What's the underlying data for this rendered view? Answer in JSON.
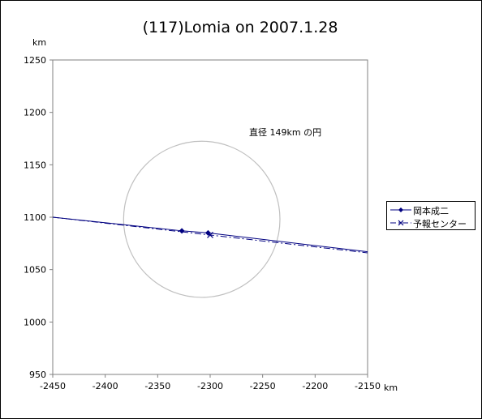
{
  "chart_data": {
    "type": "line",
    "title": "(117)Lomia on 2007.1.28",
    "xlabel": "km",
    "ylabel": "km",
    "xlim": [
      -2450,
      -2150
    ],
    "ylim": [
      950,
      1250
    ],
    "xticks": [
      "-2450",
      "-2400",
      "-2350",
      "-2300",
      "-2250",
      "-2200",
      "-2150"
    ],
    "yticks": [
      "950",
      "1000",
      "1050",
      "1100",
      "1150",
      "1200",
      "1250"
    ],
    "grid": false,
    "legend_position": "right",
    "annotation": "直径 149km の円",
    "circle": {
      "center_x": -2308,
      "center_y": 1098,
      "diameter_km": 149,
      "color": "#c0c0c0"
    },
    "series": [
      {
        "name": "岡本成二",
        "color": "#000080",
        "marker": "diamond",
        "line_style": "solid",
        "x": [
          -2450,
          -2327,
          -2302,
          -2150
        ],
        "y": [
          1100,
          1087,
          1085,
          1067
        ]
      },
      {
        "name": "予報センター",
        "color": "#000080",
        "marker": "x",
        "line_style": "dashdot",
        "x": [
          -2450,
          -2300,
          -2150
        ],
        "y": [
          1100,
          1083,
          1066
        ]
      }
    ]
  }
}
